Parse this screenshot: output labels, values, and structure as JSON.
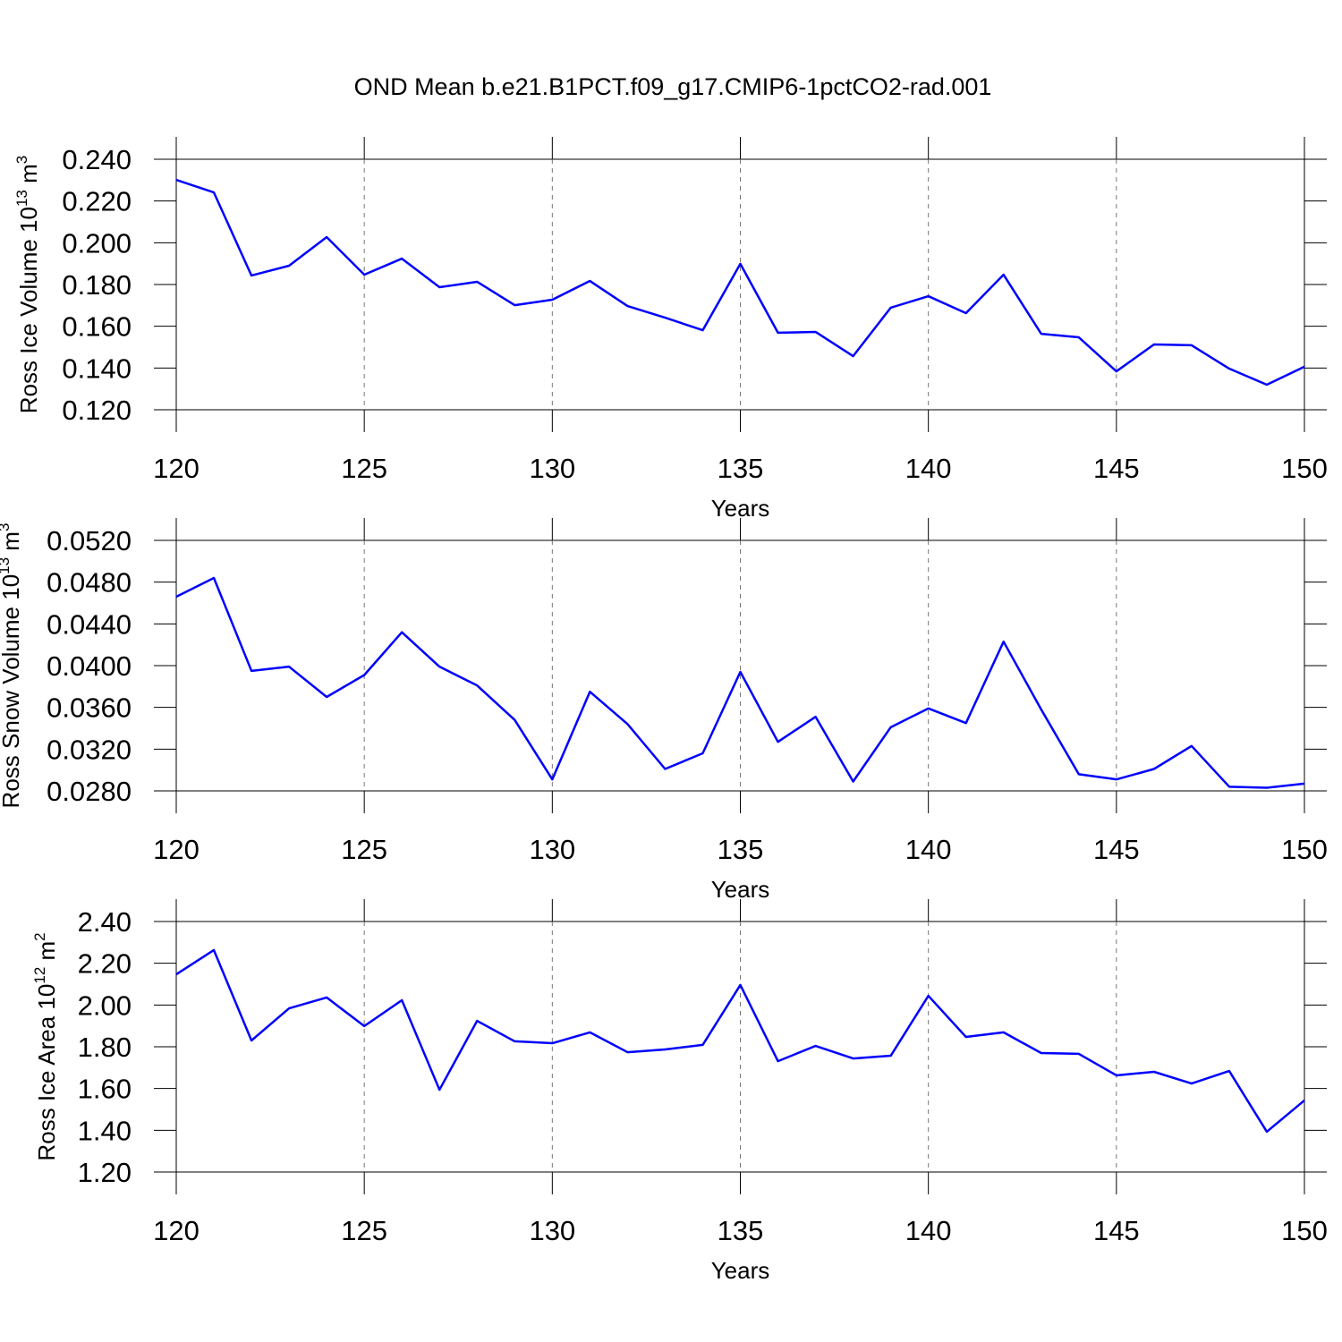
{
  "chart_data": [
    {
      "type": "line",
      "title": "OND Mean b.e21.B1PCT.f09_g17.CMIP6-1pctCO2-rad.001",
      "xlabel": "Years",
      "ylabel": [
        "Ross Ice Volume 10",
        "13",
        " m",
        "3"
      ],
      "x": [
        120,
        121,
        122,
        123,
        124,
        125,
        126,
        127,
        128,
        129,
        130,
        131,
        132,
        133,
        134,
        135,
        136,
        137,
        138,
        139,
        140,
        141,
        142,
        143,
        144,
        145,
        146,
        147,
        148,
        149,
        150
      ],
      "values": [
        0.2301,
        0.2241,
        0.1843,
        0.189,
        0.2027,
        0.1847,
        0.1924,
        0.1787,
        0.1813,
        0.1701,
        0.1727,
        0.1817,
        0.1697,
        0.1641,
        0.1581,
        0.1899,
        0.1569,
        0.1573,
        0.1457,
        0.1689,
        0.1744,
        0.1663,
        0.1847,
        0.1564,
        0.1547,
        0.1384,
        0.1513,
        0.1509,
        0.1397,
        0.132,
        0.1406
      ],
      "color": "#0000ff",
      "xlim": [
        120,
        150
      ],
      "xticks": [
        120,
        125,
        130,
        135,
        140,
        145,
        150
      ],
      "ylim": [
        0.12,
        0.24
      ],
      "yticks": [
        {
          "value": 0.12,
          "label": "0.120"
        },
        {
          "value": 0.14,
          "label": "0.140"
        },
        {
          "value": 0.16,
          "label": "0.160"
        },
        {
          "value": 0.18,
          "label": "0.180"
        },
        {
          "value": 0.2,
          "label": "0.200"
        },
        {
          "value": 0.22,
          "label": "0.220"
        },
        {
          "value": 0.24,
          "label": "0.240"
        }
      ],
      "xgrid": true
    },
    {
      "type": "line",
      "xlabel": "Years",
      "ylabel": [
        "Ross Snow Volume 10",
        "13",
        " m",
        "3"
      ],
      "x": [
        120,
        121,
        122,
        123,
        124,
        125,
        126,
        127,
        128,
        129,
        130,
        131,
        132,
        133,
        134,
        135,
        136,
        137,
        138,
        139,
        140,
        141,
        142,
        143,
        144,
        145,
        146,
        147,
        148,
        149,
        150
      ],
      "values": [
        0.0466,
        0.0484,
        0.0395,
        0.0399,
        0.037,
        0.0391,
        0.0432,
        0.0399,
        0.0381,
        0.0348,
        0.0291,
        0.0375,
        0.0344,
        0.0301,
        0.0316,
        0.0394,
        0.0327,
        0.0351,
        0.0289,
        0.0341,
        0.0359,
        0.0345,
        0.0423,
        0.0358,
        0.0296,
        0.0291,
        0.0301,
        0.0323,
        0.0284,
        0.0283,
        0.0287
      ],
      "color": "#0000ff",
      "xlim": [
        120,
        150
      ],
      "xticks": [
        120,
        125,
        130,
        135,
        140,
        145,
        150
      ],
      "ylim": [
        0.028,
        0.052
      ],
      "yticks": [
        {
          "value": 0.028,
          "label": "0.0280"
        },
        {
          "value": 0.032,
          "label": "0.0320"
        },
        {
          "value": 0.036,
          "label": "0.0360"
        },
        {
          "value": 0.04,
          "label": "0.0400"
        },
        {
          "value": 0.044,
          "label": "0.0440"
        },
        {
          "value": 0.048,
          "label": "0.0480"
        },
        {
          "value": 0.052,
          "label": "0.0520"
        }
      ],
      "xgrid": true
    },
    {
      "type": "line",
      "xlabel": "Years",
      "ylabel": [
        "Ross Ice Area 10",
        "12",
        " m",
        "2"
      ],
      "x": [
        120,
        121,
        122,
        123,
        124,
        125,
        126,
        127,
        128,
        129,
        130,
        131,
        132,
        133,
        134,
        135,
        136,
        137,
        138,
        139,
        140,
        141,
        142,
        143,
        144,
        145,
        146,
        147,
        148,
        149,
        150
      ],
      "values": [
        2.147,
        2.263,
        1.83,
        1.984,
        2.036,
        1.899,
        2.023,
        1.594,
        1.924,
        1.826,
        1.817,
        1.869,
        1.774,
        1.787,
        1.809,
        2.096,
        1.731,
        1.804,
        1.744,
        1.757,
        2.044,
        1.847,
        1.869,
        1.77,
        1.766,
        1.663,
        1.68,
        1.624,
        1.684,
        1.393,
        1.543
      ],
      "color": "#0000ff",
      "xlim": [
        120,
        150
      ],
      "xticks": [
        120,
        125,
        130,
        135,
        140,
        145,
        150
      ],
      "ylim": [
        1.2,
        2.4
      ],
      "yticks": [
        {
          "value": 1.2,
          "label": "1.20"
        },
        {
          "value": 1.4,
          "label": "1.40"
        },
        {
          "value": 1.6,
          "label": "1.60"
        },
        {
          "value": 1.8,
          "label": "1.80"
        },
        {
          "value": 2.0,
          "label": "2.00"
        },
        {
          "value": 2.2,
          "label": "2.20"
        },
        {
          "value": 2.4,
          "label": "2.40"
        }
      ],
      "xgrid": true
    }
  ]
}
